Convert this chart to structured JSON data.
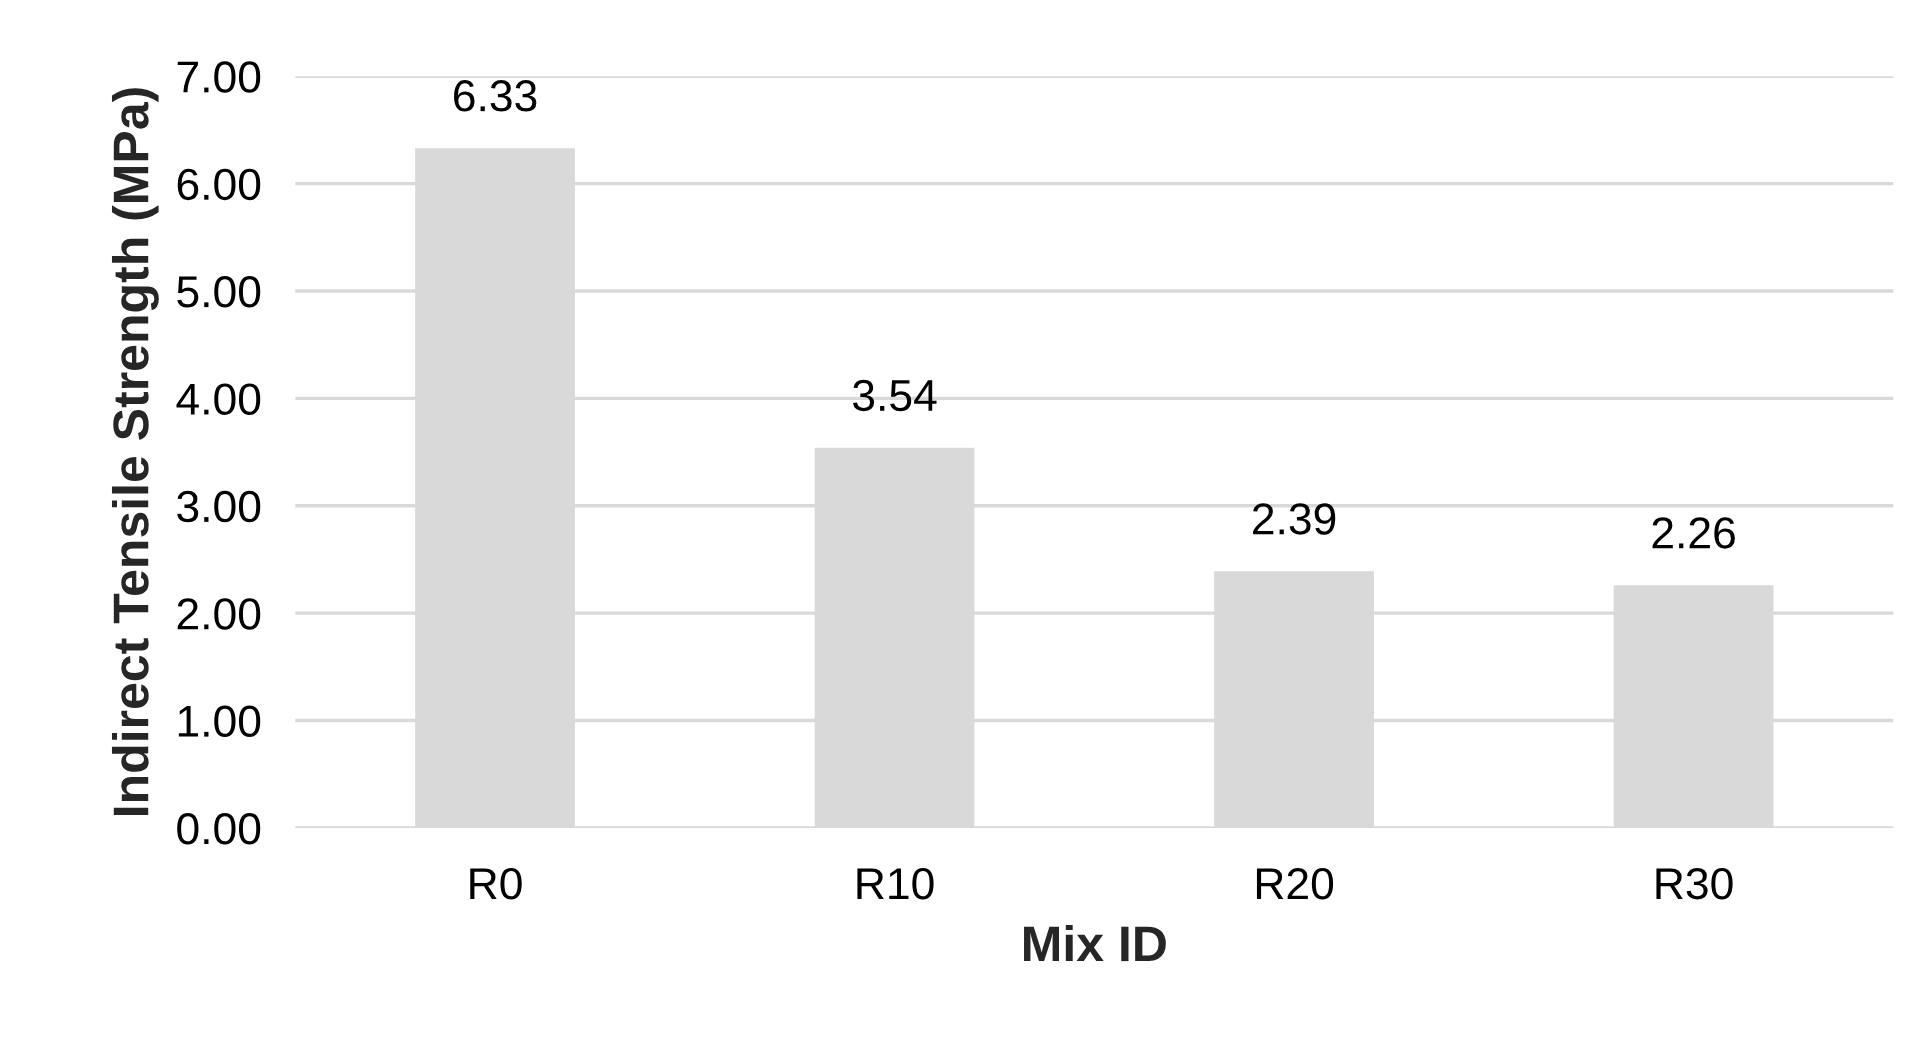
{
  "chart_data": {
    "type": "bar",
    "xlabel": "Mix ID",
    "ylabel": "Indirect Tensile Strength (MPa)",
    "categories": [
      "R0",
      "R10",
      "R20",
      "R30"
    ],
    "values": [
      6.33,
      3.54,
      2.39,
      2.26
    ],
    "color": "#d9d9d9",
    "data_labels": true,
    "ylim": [
      0,
      7
    ],
    "yticks": [
      {
        "value": 0,
        "label": "0.00"
      },
      {
        "value": 1,
        "label": "1.00"
      },
      {
        "value": 2,
        "label": "2.00"
      },
      {
        "value": 3,
        "label": "3.00"
      },
      {
        "value": 4,
        "label": "4.00"
      },
      {
        "value": 5,
        "label": "5.00"
      },
      {
        "value": 6,
        "label": "6.00"
      },
      {
        "value": 7,
        "label": "7.00"
      }
    ],
    "grid": "y",
    "legend": false
  }
}
